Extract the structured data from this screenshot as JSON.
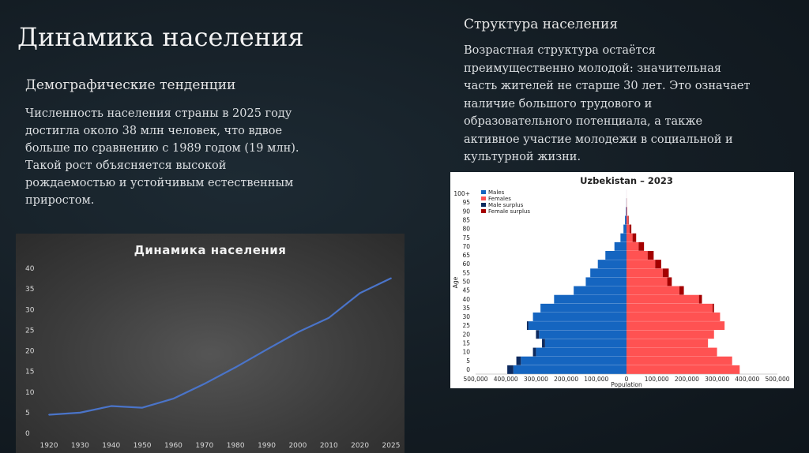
{
  "left": {
    "title": "Динамика населения",
    "subheading": "Демографические тенденции",
    "paragraph": "Численность населения страны в 2025 году достигла около 38 млн человек, что вдвое больше по сравнению с 1989 годом (19 млн). Такой рост объясняется высокой рождаемостью и устойчивым естественным приростом."
  },
  "right": {
    "subheading": "Структура населения",
    "paragraph": "Возрастная структура остаётся преимущественно молодой: значительная часть жителей не старше 30 лет. Это означает наличие большого трудового и образовательного потенциала, а также активное участие молодежи в социальной и культурной жизни."
  },
  "chart_data": [
    {
      "type": "line",
      "title": "Динамика населения",
      "x": [
        1920,
        1930,
        1940,
        1950,
        1960,
        1970,
        1980,
        1990,
        2000,
        2010,
        2020,
        2025
      ],
      "series": [
        {
          "values": [
            4.5,
            5.0,
            6.6,
            6.2,
            8.4,
            12.0,
            16.0,
            20.3,
            24.5,
            28.0,
            34.0,
            37.6
          ]
        }
      ],
      "xticks": [
        "1920",
        "1930",
        "1940",
        "1950",
        "1960",
        "1970",
        "1980",
        "1990",
        "2000",
        "2010",
        "2020",
        "2025"
      ],
      "yticks": [
        "0",
        "5",
        "10",
        "15",
        "20",
        "25",
        "30",
        "35",
        "40"
      ],
      "ylim": [
        0,
        40
      ],
      "grid": false,
      "line_color": "#4a74c9",
      "background": "#3d3d3d"
    },
    {
      "type": "bar",
      "orientation": "horizontal",
      "title": "Uzbekistan – 2023",
      "xlabel": "Population",
      "ylabel": "Age",
      "age_ticks": [
        "0",
        "5",
        "10",
        "15",
        "20",
        "25",
        "30",
        "35",
        "40",
        "45",
        "50",
        "55",
        "60",
        "65",
        "70",
        "75",
        "80",
        "85",
        "90",
        "95",
        "100+"
      ],
      "x_ticks": [
        "500,000",
        "400,000",
        "300,000",
        "200,000",
        "100,000",
        "0",
        "100,000",
        "200,000",
        "300,000",
        "400,000",
        "500,000"
      ],
      "xlim": [
        -500000,
        500000
      ],
      "legend": [
        "Males",
        "Females",
        "Male surplus",
        "Female surplus"
      ],
      "legend_position": "top-left",
      "colors": {
        "males": "#1565c0",
        "females": "#ff5252",
        "male_surplus": "#0d2a5e",
        "female_surplus": "#a40000"
      },
      "age_groups": [
        0,
        5,
        10,
        15,
        20,
        25,
        30,
        35,
        40,
        45,
        50,
        55,
        60,
        65,
        70,
        75,
        80,
        85,
        90,
        95,
        100
      ],
      "males": [
        395000,
        365000,
        310000,
        280000,
        300000,
        330000,
        310000,
        285000,
        240000,
        175000,
        135000,
        120000,
        95000,
        70000,
        40000,
        20000,
        10000,
        5000,
        2000,
        500,
        100
      ],
      "females": [
        375000,
        350000,
        300000,
        270000,
        290000,
        325000,
        310000,
        290000,
        250000,
        190000,
        150000,
        140000,
        115000,
        90000,
        58000,
        32000,
        16000,
        7000,
        2500,
        800,
        150
      ],
      "series": [
        {
          "name": "Males"
        },
        {
          "name": "Females"
        },
        {
          "name": "Male surplus"
        },
        {
          "name": "Female surplus"
        }
      ]
    }
  ]
}
